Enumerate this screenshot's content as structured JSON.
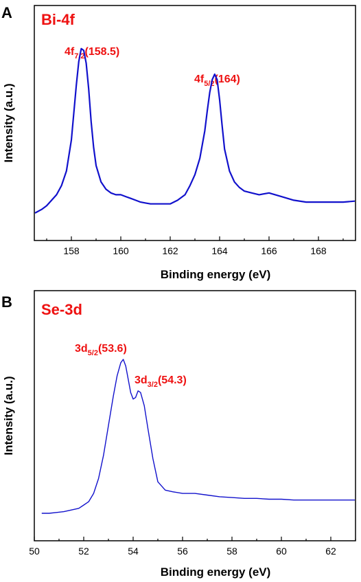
{
  "chart_data": [
    {
      "type": "line",
      "panel_label": "A",
      "title": "Bi-4f",
      "xlabel": "Binding energy (eV)",
      "ylabel": "Intensity (a.u.)",
      "xlim": [
        156.5,
        169.5
      ],
      "ylim": [
        0,
        1
      ],
      "xticks": [
        158,
        160,
        162,
        164,
        166,
        168
      ],
      "tick_labels": [
        "158",
        "160",
        "162",
        "164",
        "166",
        "168"
      ],
      "line_color": "#1111cc",
      "annotations": [
        {
          "main": "4f",
          "sub": "7/2",
          "tail": "(158.5)"
        },
        {
          "main": "4f",
          "sub": "5/2",
          "tail": "(164)"
        }
      ],
      "series": [
        {
          "x": [
            156.5,
            156.8,
            157.0,
            157.2,
            157.4,
            157.6,
            157.8,
            158.0,
            158.1,
            158.2,
            158.3,
            158.4,
            158.5,
            158.6,
            158.7,
            158.8,
            158.9,
            159.0,
            159.2,
            159.4,
            159.6,
            159.8,
            160.0,
            160.2,
            160.4,
            160.6,
            160.8,
            161.0,
            161.2,
            161.5,
            161.8,
            162.0,
            162.3,
            162.6,
            162.8,
            163.0,
            163.2,
            163.4,
            163.5,
            163.6,
            163.7,
            163.8,
            163.9,
            164.0,
            164.1,
            164.2,
            164.4,
            164.6,
            164.8,
            165.0,
            165.3,
            165.6,
            166.0,
            166.5,
            167.0,
            167.5,
            168.0,
            168.5,
            169.0,
            169.5
          ],
          "y": [
            0.1,
            0.12,
            0.14,
            0.17,
            0.2,
            0.25,
            0.33,
            0.5,
            0.65,
            0.8,
            0.93,
            1.0,
            0.99,
            0.92,
            0.78,
            0.6,
            0.46,
            0.36,
            0.27,
            0.23,
            0.21,
            0.2,
            0.2,
            0.19,
            0.18,
            0.17,
            0.16,
            0.155,
            0.15,
            0.15,
            0.15,
            0.15,
            0.17,
            0.2,
            0.25,
            0.31,
            0.4,
            0.55,
            0.66,
            0.76,
            0.83,
            0.86,
            0.83,
            0.72,
            0.58,
            0.45,
            0.33,
            0.27,
            0.24,
            0.22,
            0.21,
            0.2,
            0.21,
            0.19,
            0.17,
            0.16,
            0.16,
            0.16,
            0.16,
            0.165
          ]
        }
      ]
    },
    {
      "type": "line",
      "panel_label": "B",
      "title": "Se-3d",
      "xlabel": "Binding energy (eV)",
      "ylabel": "Intensity (a.u.)",
      "xlim": [
        50,
        63
      ],
      "ylim": [
        0,
        1
      ],
      "xticks": [
        50,
        52,
        54,
        56,
        58,
        60,
        62
      ],
      "tick_labels": [
        "50",
        "52",
        "54",
        "56",
        "58",
        "60",
        "62"
      ],
      "line_color": "#1111cc",
      "annotations": [
        {
          "main": "3d",
          "sub": "5/2",
          "tail": "(53.6)"
        },
        {
          "main": "3d",
          "sub": "3/2",
          "tail": "(54.3)"
        }
      ],
      "series": [
        {
          "x": [
            50.3,
            50.6,
            50.9,
            51.2,
            51.5,
            51.8,
            52.0,
            52.2,
            52.4,
            52.6,
            52.8,
            53.0,
            53.2,
            53.35,
            53.5,
            53.6,
            53.7,
            53.8,
            53.9,
            54.0,
            54.1,
            54.2,
            54.3,
            54.45,
            54.6,
            54.8,
            55.0,
            55.3,
            55.6,
            56.0,
            56.5,
            57.0,
            57.5,
            58.0,
            58.5,
            59.0,
            59.5,
            60.0,
            60.5,
            61.0,
            61.5,
            62.0,
            62.5,
            63.0
          ],
          "y": [
            0.07,
            0.07,
            0.075,
            0.08,
            0.09,
            0.1,
            0.12,
            0.14,
            0.19,
            0.28,
            0.42,
            0.6,
            0.78,
            0.9,
            0.98,
            1.0,
            0.96,
            0.88,
            0.8,
            0.76,
            0.77,
            0.81,
            0.8,
            0.72,
            0.58,
            0.4,
            0.26,
            0.21,
            0.2,
            0.19,
            0.19,
            0.18,
            0.17,
            0.165,
            0.16,
            0.16,
            0.155,
            0.155,
            0.15,
            0.15,
            0.15,
            0.15,
            0.15,
            0.15
          ]
        }
      ]
    }
  ]
}
